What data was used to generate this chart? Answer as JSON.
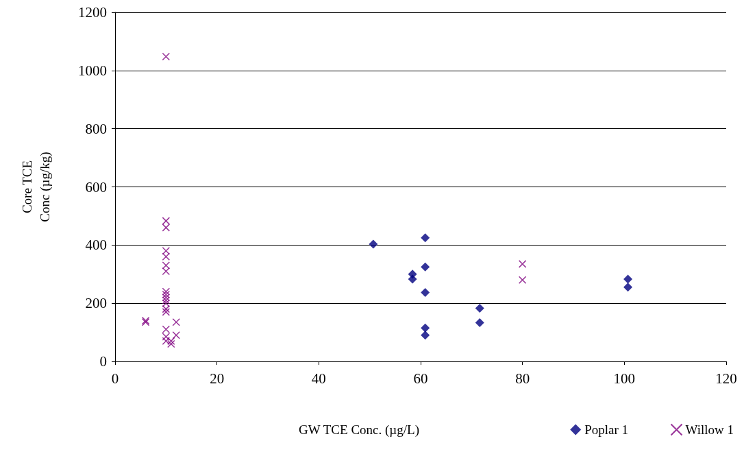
{
  "chart_data": {
    "type": "scatter",
    "xlabel": "GW TCE Conc. (µg/L)",
    "ylabel": "Core TCE\nConc (µg/kg)",
    "xlim": [
      0,
      120
    ],
    "xticks": [
      0,
      20,
      40,
      60,
      80,
      100,
      120
    ],
    "ylim": [
      0,
      1200
    ],
    "yticks": [
      0,
      200,
      400,
      600,
      800,
      1000,
      1200
    ],
    "grid": "y",
    "legend": "bottom right",
    "series": [
      {
        "name": "Poplar 1",
        "color": "#000080",
        "marker": "diamond",
        "x": [
          50.7,
          58.4,
          58.4,
          60.9,
          60.9,
          60.9,
          60.9,
          60.9,
          71.6,
          71.6,
          100.7,
          100.7
        ],
        "values": [
          403,
          300,
          283,
          425,
          325,
          237,
          115,
          90,
          183,
          133,
          283,
          255
        ]
      },
      {
        "name": "Willow 1",
        "color": "#800080",
        "marker": "cross",
        "x": [
          6,
          6,
          10,
          10,
          10,
          10,
          10,
          10,
          10,
          10,
          10,
          10,
          10,
          10,
          10,
          10,
          10,
          10,
          10,
          11,
          11,
          12,
          12,
          80,
          80
        ],
        "values": [
          140,
          135,
          1048,
          483,
          460,
          380,
          360,
          330,
          310,
          240,
          230,
          220,
          210,
          200,
          180,
          170,
          110,
          85,
          70,
          60,
          70,
          135,
          90,
          335,
          280
        ]
      }
    ]
  }
}
